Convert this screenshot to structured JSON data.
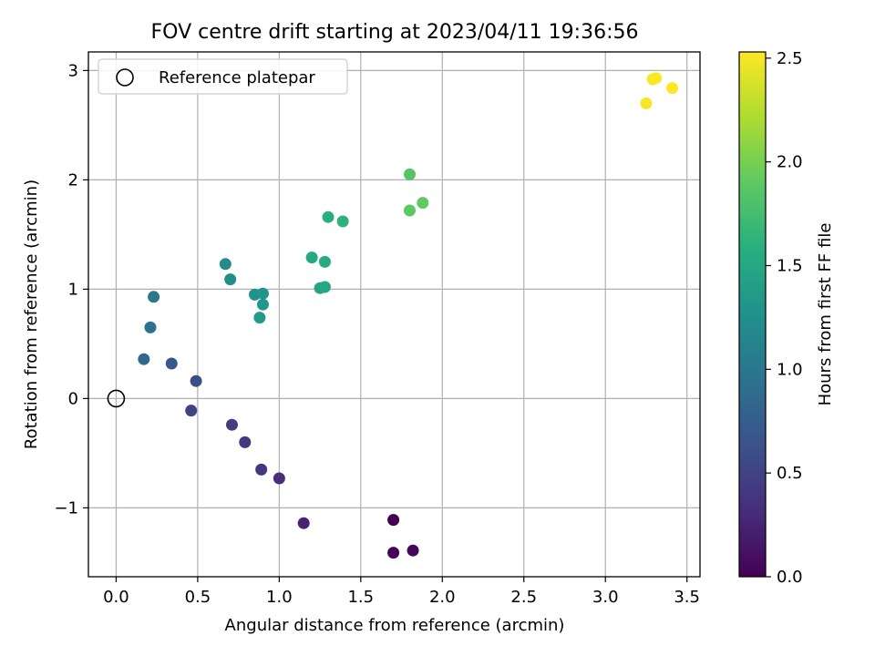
{
  "chart_data": {
    "type": "scatter",
    "title": "FOV centre drift starting at 2023/04/11 19:36:56",
    "xlabel": "Angular distance from reference (arcmin)",
    "ylabel": "Rotation from reference (arcmin)",
    "xlim": [
      -0.17,
      3.58
    ],
    "ylim": [
      -1.63,
      3.17
    ],
    "xticks": [
      0.0,
      0.5,
      1.0,
      1.5,
      2.0,
      2.5,
      3.0,
      3.5
    ],
    "xtick_labels": [
      "0.0",
      "0.5",
      "1.0",
      "1.5",
      "2.0",
      "2.5",
      "3.0",
      "3.5"
    ],
    "yticks": [
      -1,
      0,
      1,
      2,
      3
    ],
    "ytick_labels": [
      "−1",
      "0",
      "1",
      "2",
      "3"
    ],
    "grid": true,
    "legend": {
      "placement": "upper-left",
      "entries": [
        "Reference platepar"
      ]
    },
    "colorbar": {
      "label": "Hours from first FF file",
      "range": [
        0.0,
        2.53
      ],
      "ticks": [
        0.0,
        0.5,
        1.0,
        1.5,
        2.0,
        2.5
      ],
      "tick_labels": [
        "0.0",
        "0.5",
        "1.0",
        "1.5",
        "2.0",
        "2.5"
      ],
      "colormap": "viridis"
    },
    "reference_point": {
      "x": 0.0,
      "y": 0.0
    },
    "points": [
      {
        "x": 1.7,
        "y": -1.11,
        "hours": 0.0
      },
      {
        "x": 1.7,
        "y": -1.41,
        "hours": 0.02
      },
      {
        "x": 1.82,
        "y": -1.39,
        "hours": 0.05
      },
      {
        "x": 1.15,
        "y": -1.14,
        "hours": 0.25
      },
      {
        "x": 1.0,
        "y": -0.73,
        "hours": 0.32
      },
      {
        "x": 0.89,
        "y": -0.65,
        "hours": 0.4
      },
      {
        "x": 0.79,
        "y": -0.4,
        "hours": 0.42
      },
      {
        "x": 0.71,
        "y": -0.24,
        "hours": 0.45
      },
      {
        "x": 0.46,
        "y": -0.11,
        "hours": 0.5
      },
      {
        "x": 0.49,
        "y": 0.16,
        "hours": 0.6
      },
      {
        "x": 0.34,
        "y": 0.32,
        "hours": 0.68
      },
      {
        "x": 0.17,
        "y": 0.36,
        "hours": 0.85
      },
      {
        "x": 0.21,
        "y": 0.65,
        "hours": 0.95
      },
      {
        "x": 0.23,
        "y": 0.93,
        "hours": 1.0
      },
      {
        "x": 0.67,
        "y": 1.23,
        "hours": 1.2
      },
      {
        "x": 0.7,
        "y": 1.09,
        "hours": 1.22
      },
      {
        "x": 0.85,
        "y": 0.95,
        "hours": 1.28
      },
      {
        "x": 0.9,
        "y": 0.96,
        "hours": 1.3
      },
      {
        "x": 0.9,
        "y": 0.86,
        "hours": 1.32
      },
      {
        "x": 0.88,
        "y": 0.74,
        "hours": 1.35
      },
      {
        "x": 1.25,
        "y": 1.01,
        "hours": 1.48
      },
      {
        "x": 1.28,
        "y": 1.02,
        "hours": 1.5
      },
      {
        "x": 1.2,
        "y": 1.29,
        "hours": 1.52
      },
      {
        "x": 1.28,
        "y": 1.25,
        "hours": 1.55
      },
      {
        "x": 1.3,
        "y": 1.66,
        "hours": 1.58
      },
      {
        "x": 1.39,
        "y": 1.62,
        "hours": 1.62
      },
      {
        "x": 1.8,
        "y": 2.05,
        "hours": 1.85
      },
      {
        "x": 1.8,
        "y": 1.72,
        "hours": 1.88
      },
      {
        "x": 1.88,
        "y": 1.79,
        "hours": 1.9
      },
      {
        "x": 3.25,
        "y": 2.7,
        "hours": 2.5
      },
      {
        "x": 3.29,
        "y": 2.92,
        "hours": 2.51
      },
      {
        "x": 3.31,
        "y": 2.93,
        "hours": 2.52
      },
      {
        "x": 3.41,
        "y": 2.84,
        "hours": 2.53
      }
    ]
  }
}
